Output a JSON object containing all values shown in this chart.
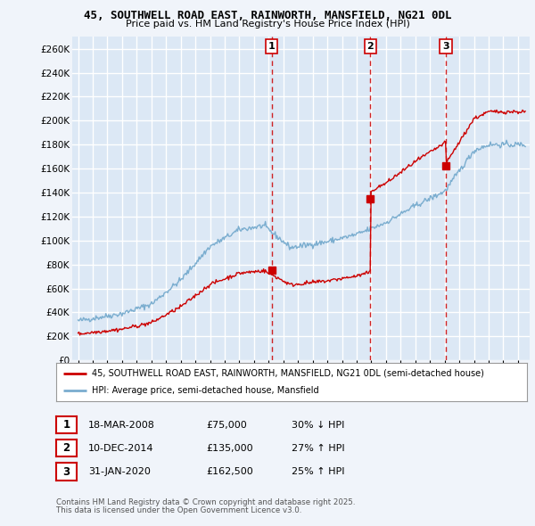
{
  "title": "45, SOUTHWELL ROAD EAST, RAINWORTH, MANSFIELD, NG21 0DL",
  "subtitle": "Price paid vs. HM Land Registry's House Price Index (HPI)",
  "ylabel_ticks": [
    "£0",
    "£20K",
    "£40K",
    "£60K",
    "£80K",
    "£100K",
    "£120K",
    "£140K",
    "£160K",
    "£180K",
    "£200K",
    "£220K",
    "£240K",
    "£260K"
  ],
  "ytick_values": [
    0,
    20000,
    40000,
    60000,
    80000,
    100000,
    120000,
    140000,
    160000,
    180000,
    200000,
    220000,
    240000,
    260000
  ],
  "ylim": [
    0,
    270000
  ],
  "legend_line1": "45, SOUTHWELL ROAD EAST, RAINWORTH, MANSFIELD, NG21 0DL (semi-detached house)",
  "legend_line2": "HPI: Average price, semi-detached house, Mansfield",
  "transactions": [
    {
      "num": 1,
      "date": "18-MAR-2008",
      "price": 75000,
      "price_str": "£75,000",
      "pct": "30%",
      "dir": "↓",
      "x": 2008.21
    },
    {
      "num": 2,
      "date": "10-DEC-2014",
      "price": 135000,
      "price_str": "£135,000",
      "pct": "27%",
      "dir": "↑",
      "x": 2014.94
    },
    {
      "num": 3,
      "date": "31-JAN-2020",
      "price": 162500,
      "price_str": "£162,500",
      "pct": "25%",
      "dir": "↑",
      "x": 2020.08
    }
  ],
  "footer1": "Contains HM Land Registry data © Crown copyright and database right 2025.",
  "footer2": "This data is licensed under the Open Government Licence v3.0.",
  "background_color": "#f0f4fa",
  "plot_bg_color": "#dce8f5",
  "grid_color": "#c8d8ea",
  "red_line_color": "#cc0000",
  "blue_line_color": "#7aadcf"
}
